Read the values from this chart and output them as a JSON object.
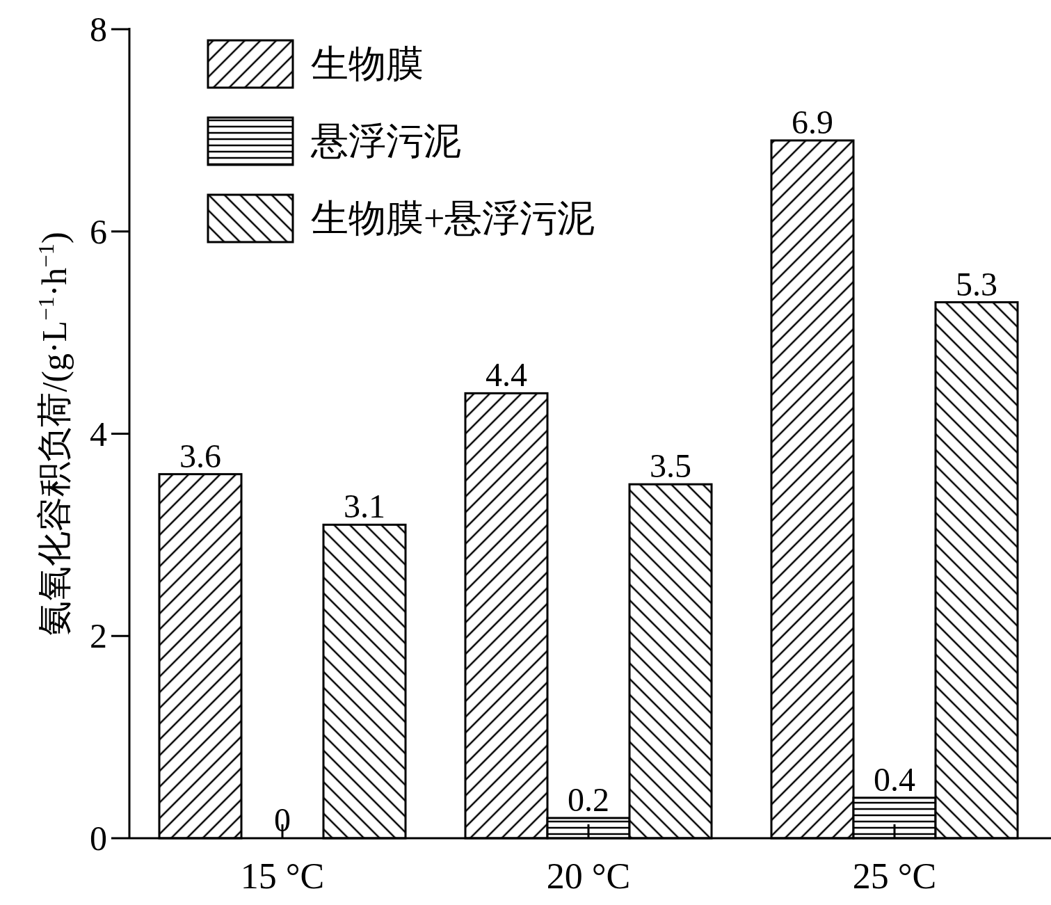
{
  "chart_data": {
    "type": "bar",
    "ylabel": "氨氧化容积负荷/(g·L$^{−1}$·h$^{−1}$)",
    "categories": [
      "15 °C",
      "20 °C",
      "25 °C"
    ],
    "series": [
      {
        "name": "生物膜",
        "color": "#000000",
        "values": [
          3.6,
          4.4,
          6.9
        ]
      },
      {
        "name": "悬浮污泥",
        "color": "#000000",
        "values": [
          0,
          0.2,
          0.4
        ]
      },
      {
        "name": "生物膜+悬浮污泥",
        "color": "#000000",
        "values": [
          3.1,
          3.5,
          5.3
        ]
      }
    ],
    "ylim": [
      0,
      8
    ],
    "yticks": [
      0,
      2,
      4,
      6,
      8
    ],
    "data_labels": true,
    "legend": "top left",
    "grid": false
  }
}
